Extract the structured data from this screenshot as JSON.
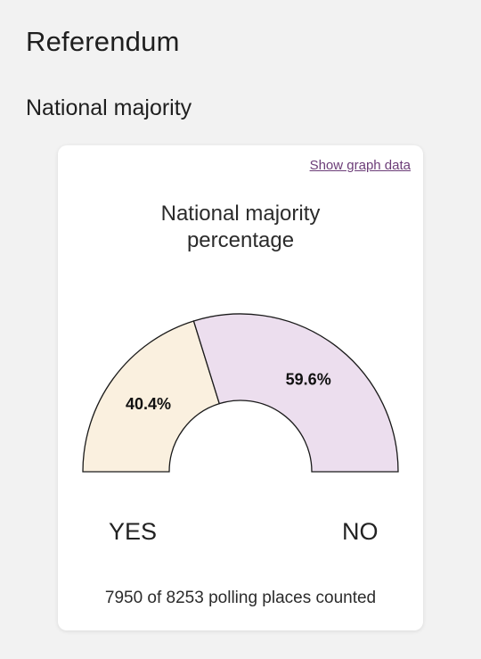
{
  "page": {
    "title": "Referendum",
    "section_title": "National majority"
  },
  "card": {
    "link_label": "Show graph data",
    "footer": "7950 of 8253 polling places counted"
  },
  "chart_data": {
    "type": "pie",
    "subtype": "semicircle-donut",
    "title": "National majority percentage",
    "categories": [
      "YES",
      "NO"
    ],
    "values": [
      40.4,
      59.6
    ],
    "value_labels": [
      "40.4%",
      "59.6%"
    ],
    "colors": [
      "#faf0df",
      "#ecdeee"
    ],
    "stroke_color": "#1a1a1a"
  }
}
